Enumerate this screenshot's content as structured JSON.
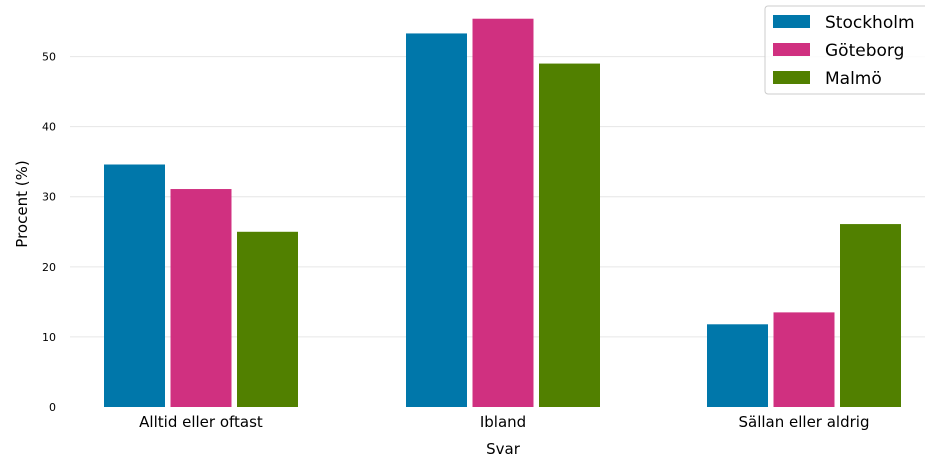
{
  "chart_data": {
    "type": "bar",
    "xlabel": "Svar",
    "ylabel": "Procent (%)",
    "ylim": [
      0,
      57.5
    ],
    "yticks": [
      0,
      10,
      20,
      30,
      40,
      50
    ],
    "grid": "y",
    "legend_position": "top-right",
    "categories": [
      "Alltid eller oftast",
      "Ibland",
      "Sällan eller aldrig"
    ],
    "series": [
      {
        "name": "Stockholm",
        "color": "#0077aa",
        "values": [
          34.6,
          53.3,
          11.8
        ]
      },
      {
        "name": "Göteborg",
        "color": "#d03080",
        "values": [
          31.1,
          55.4,
          13.5
        ]
      },
      {
        "name": "Malmö",
        "color": "#518000",
        "values": [
          25.0,
          49.0,
          26.1
        ]
      }
    ]
  }
}
